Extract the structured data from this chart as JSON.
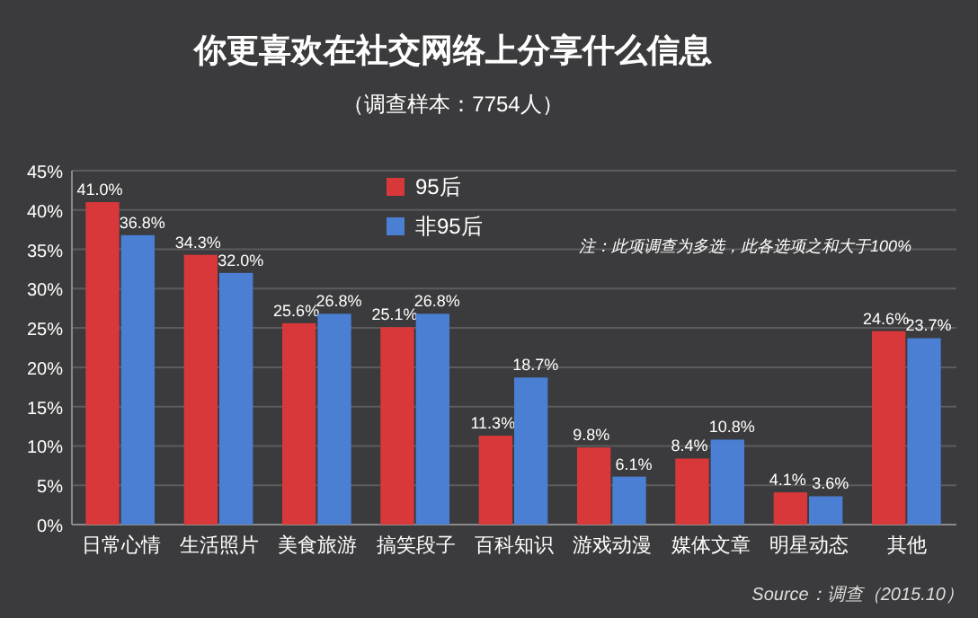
{
  "chart_data": {
    "type": "bar",
    "title": "你更喜欢在社交网络上分享什么信息",
    "subtitle": "（调查样本：7754人）",
    "categories": [
      "日常心情",
      "生活照片",
      "美食旅游",
      "搞笑段子",
      "百科知识",
      "游戏动漫",
      "媒体文章",
      "明星动态",
      "其他"
    ],
    "series": [
      {
        "name": "95后",
        "color": "#d9383a",
        "values": [
          41.0,
          34.3,
          25.6,
          25.1,
          11.3,
          9.8,
          8.4,
          4.1,
          24.6
        ],
        "value_labels": [
          "41.0%",
          "34.3%",
          "25.6%",
          "25.1%",
          "11.3%",
          "9.8%",
          "8.4%",
          "4.1%",
          "24.6%"
        ]
      },
      {
        "name": "非95后",
        "color": "#4a7fd4",
        "values": [
          36.8,
          32.0,
          26.8,
          26.8,
          18.7,
          6.1,
          10.8,
          3.6,
          23.7
        ],
        "value_labels": [
          "36.8%",
          "32.0%",
          "26.8%",
          "26.8%",
          "18.7%",
          "6.1%",
          "10.8%",
          "3.6%",
          "23.7%"
        ]
      }
    ],
    "ylim": [
      0,
      45
    ],
    "yticks": [
      {
        "value": 0,
        "label": "0%"
      },
      {
        "value": 5,
        "label": "5%"
      },
      {
        "value": 10,
        "label": "10%"
      },
      {
        "value": 15,
        "label": "15%"
      },
      {
        "value": 20,
        "label": "20%"
      },
      {
        "value": 25,
        "label": "25%"
      },
      {
        "value": 30,
        "label": "30%"
      },
      {
        "value": 35,
        "label": "35%"
      },
      {
        "value": 40,
        "label": "40%"
      },
      {
        "value": 45,
        "label": "45%"
      }
    ],
    "grid": "y",
    "legend": "top",
    "annotations": [
      "注：此项调查为多选，此各选项之和大于100%",
      "Source：调查（2015.10）"
    ]
  }
}
